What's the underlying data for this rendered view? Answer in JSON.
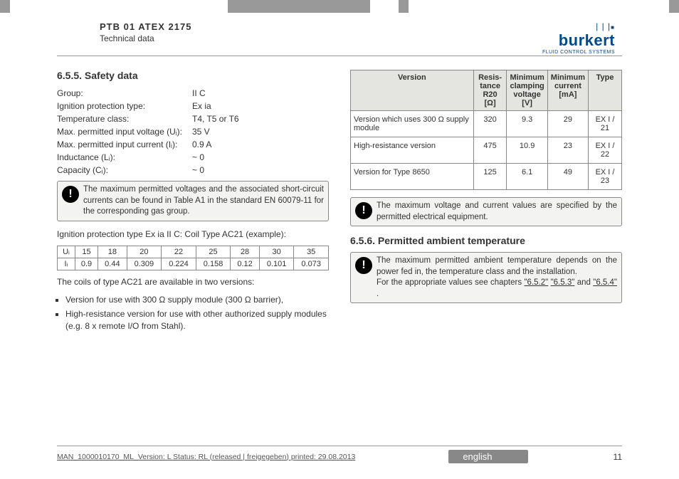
{
  "header": {
    "doc_title": "PTB 01 ATEX 2175",
    "subtitle": "Technical data",
    "brand": "burkert",
    "tagline": "FLUID CONTROL SYSTEMS"
  },
  "left": {
    "heading": "6.5.5.   Safety data",
    "specs": [
      {
        "label": "Group:",
        "value": "II C"
      },
      {
        "label": "Ignition protection type:",
        "value": "Ex ia"
      },
      {
        "label": "Temperature class:",
        "value": "T4, T5 or T6"
      },
      {
        "label": "Max. permitted input voltage (Uᵢ):",
        "value": "35 V"
      },
      {
        "label": "Max. permitted input current (Iᵢ):",
        "value": "0.9 A"
      },
      {
        "label": "Inductance (Lᵢ):",
        "value": "~ 0"
      },
      {
        "label": "Capacity (Cᵢ):",
        "value": "~ 0"
      }
    ],
    "note1": "The maximum permitted voltages and the associated short-circuit currents can be found in Table A1 in the standard EN 60079-11 for the corresponding gas group.",
    "ignition_para": "Ignition protection type Ex ia II C: Coil Type AC21 (example):",
    "small_table": {
      "row_labels": [
        "Uᵢ",
        "Iᵢ"
      ],
      "cols": [
        "15",
        "18",
        "20",
        "22",
        "25",
        "28",
        "30",
        "35"
      ],
      "row2": [
        "0.9",
        "0.44",
        "0.309",
        "0.224",
        "0.158",
        "0.12",
        "0.101",
        "0.073"
      ]
    },
    "versions_intro": "The coils of type AC21 are available in two versions:",
    "bullets": [
      "Version for use with 300 Ω supply module (300 Ω barrier),",
      "High-resistance version for use with other authorized supply modules (e.g. 8 x remote I/O from Stahl)."
    ]
  },
  "right": {
    "vtable": {
      "headers": [
        "Version",
        "Resis-\ntance\nR20 [Ω]",
        "Minimum\nclamping\nvoltage\n[V]",
        "Minimum\ncurrent\n[mA]",
        "Type"
      ],
      "rows": [
        [
          "Version which uses 300 Ω supply module",
          "320",
          "9.3",
          "29",
          "EX I / 21"
        ],
        [
          "High-resistance version",
          "475",
          "10.9",
          "23",
          "EX I / 22"
        ],
        [
          "Version for Type 8650",
          "125",
          "6.1",
          "49",
          "EX I / 23"
        ]
      ]
    },
    "note2": "The maximum voltage and current values are specified by the permitted electrical equipment.",
    "heading2": "6.5.6.   Permitted ambient temperature",
    "note3_a": "The maximum permitted ambient temperature depends on the power fed in, the temperature class and the installation.",
    "note3_b": "For the appropriate values see chapters ",
    "note3_links": [
      "\"6.5.2\"",
      "\"6.5.3\""
    ],
    "note3_c": " and ",
    "note3_link_last": "\"6.5.4\"",
    "note3_d": "."
  },
  "footer": {
    "line": "MAN_1000010170_ML_Version: L Status: RL (released | freigegeben)  printed: 29.08.2013",
    "lang": "english",
    "page": "11"
  }
}
